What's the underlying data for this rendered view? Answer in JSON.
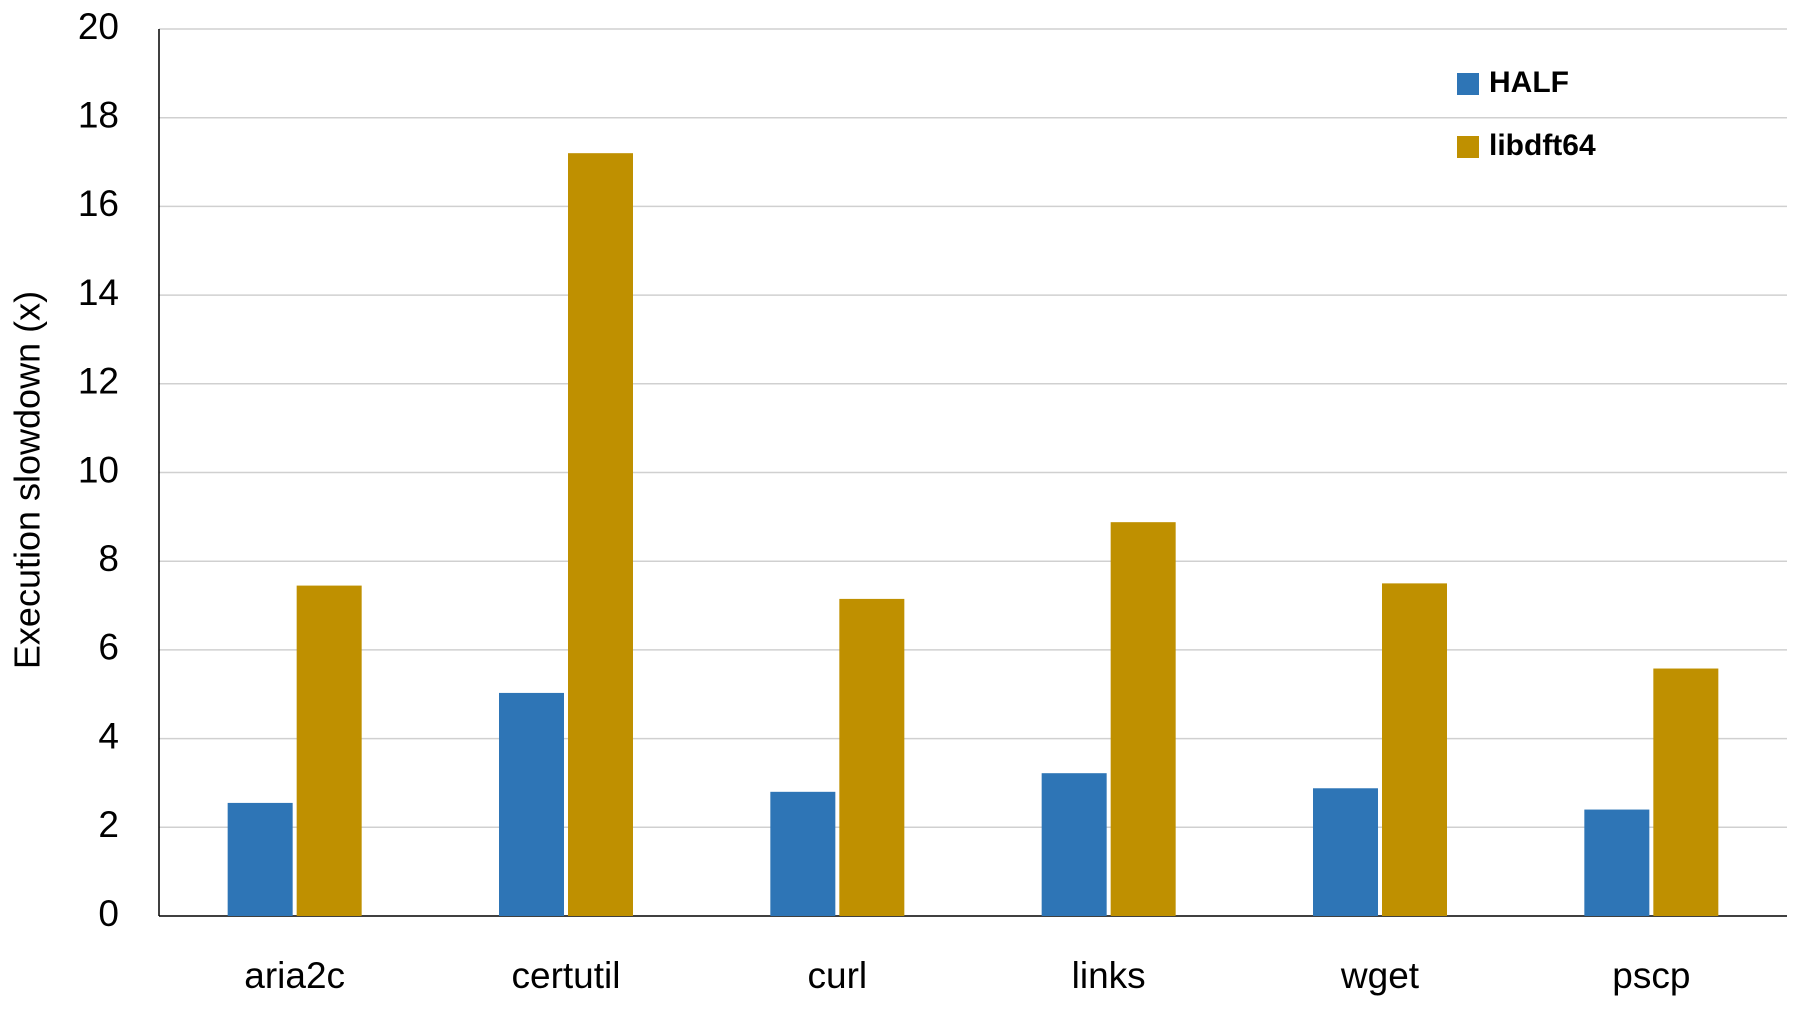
{
  "chart_data": {
    "type": "bar",
    "y_label": "Execution slowdown (x)",
    "categories": [
      "aria2c",
      "certutil",
      "curl",
      "links",
      "wget",
      "pscp"
    ],
    "series": [
      {
        "name": "HALF",
        "color": "#2e75b6",
        "values": [
          2.55,
          5.03,
          2.8,
          3.22,
          2.88,
          2.4
        ]
      },
      {
        "name": "libdft64",
        "color": "#bf9000",
        "values": [
          7.45,
          17.2,
          7.15,
          8.88,
          7.5,
          5.58
        ]
      }
    ],
    "ylim": [
      0,
      20
    ],
    "yticks": [
      0,
      2,
      4,
      6,
      8,
      10,
      12,
      14,
      16,
      18,
      20
    ],
    "grid": true,
    "legend": "top-right"
  }
}
